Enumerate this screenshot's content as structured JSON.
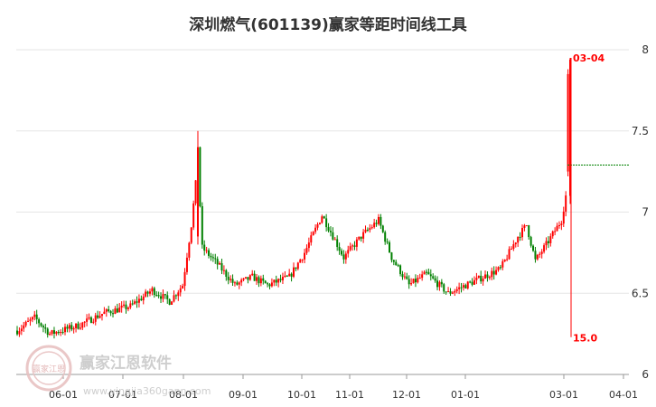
{
  "chart_data": {
    "type": "candlestick",
    "title": "深圳燃气(601139)赢家等距时间线工具",
    "y_axis": {
      "min": 6,
      "max": 8,
      "ticks": [
        "8",
        "7.5",
        "7",
        "6.5",
        "6"
      ],
      "position": "right"
    },
    "x_axis": {
      "labels": [
        "06-01",
        "07-01",
        "08-01",
        "09-01",
        "10-01",
        "11-01",
        "12-01",
        "01-01",
        "03-01",
        "04-01"
      ]
    },
    "colors": {
      "up": "#ff0000",
      "down": "#008000",
      "grid": "#e6e6e6",
      "axis": "#333333"
    },
    "reference_level": 7.29,
    "annotations": [
      {
        "label": "03-04",
        "value": 7.95
      },
      {
        "label": "15.0",
        "value": 6.23
      }
    ],
    "anchors": [
      [
        0,
        6.27
      ],
      [
        8,
        6.35
      ],
      [
        15,
        6.25
      ],
      [
        28,
        6.3
      ],
      [
        40,
        6.38
      ],
      [
        52,
        6.42
      ],
      [
        62,
        6.52
      ],
      [
        70,
        6.45
      ],
      [
        76,
        6.55
      ],
      [
        80,
        6.92
      ],
      [
        83,
        7.3
      ],
      [
        85,
        6.78
      ],
      [
        92,
        6.68
      ],
      [
        100,
        6.55
      ],
      [
        108,
        6.6
      ],
      [
        115,
        6.55
      ],
      [
        125,
        6.6
      ],
      [
        132,
        6.75
      ],
      [
        140,
        6.98
      ],
      [
        144,
        6.88
      ],
      [
        150,
        6.72
      ],
      [
        158,
        6.85
      ],
      [
        166,
        6.95
      ],
      [
        172,
        6.72
      ],
      [
        180,
        6.55
      ],
      [
        188,
        6.62
      ],
      [
        198,
        6.5
      ],
      [
        206,
        6.55
      ],
      [
        214,
        6.6
      ],
      [
        222,
        6.65
      ],
      [
        230,
        6.85
      ],
      [
        234,
        6.92
      ],
      [
        238,
        6.7
      ],
      [
        244,
        6.82
      ],
      [
        250,
        6.95
      ],
      [
        252,
        7.1
      ],
      [
        253,
        7.5
      ],
      [
        254,
        7.4
      ]
    ],
    "series_count": 255,
    "volatility": 0.045
  },
  "watermark": {
    "brand": "赢家江恩软件",
    "url": "www.yingjia360gann.com",
    "seal": "赢家江恩"
  }
}
